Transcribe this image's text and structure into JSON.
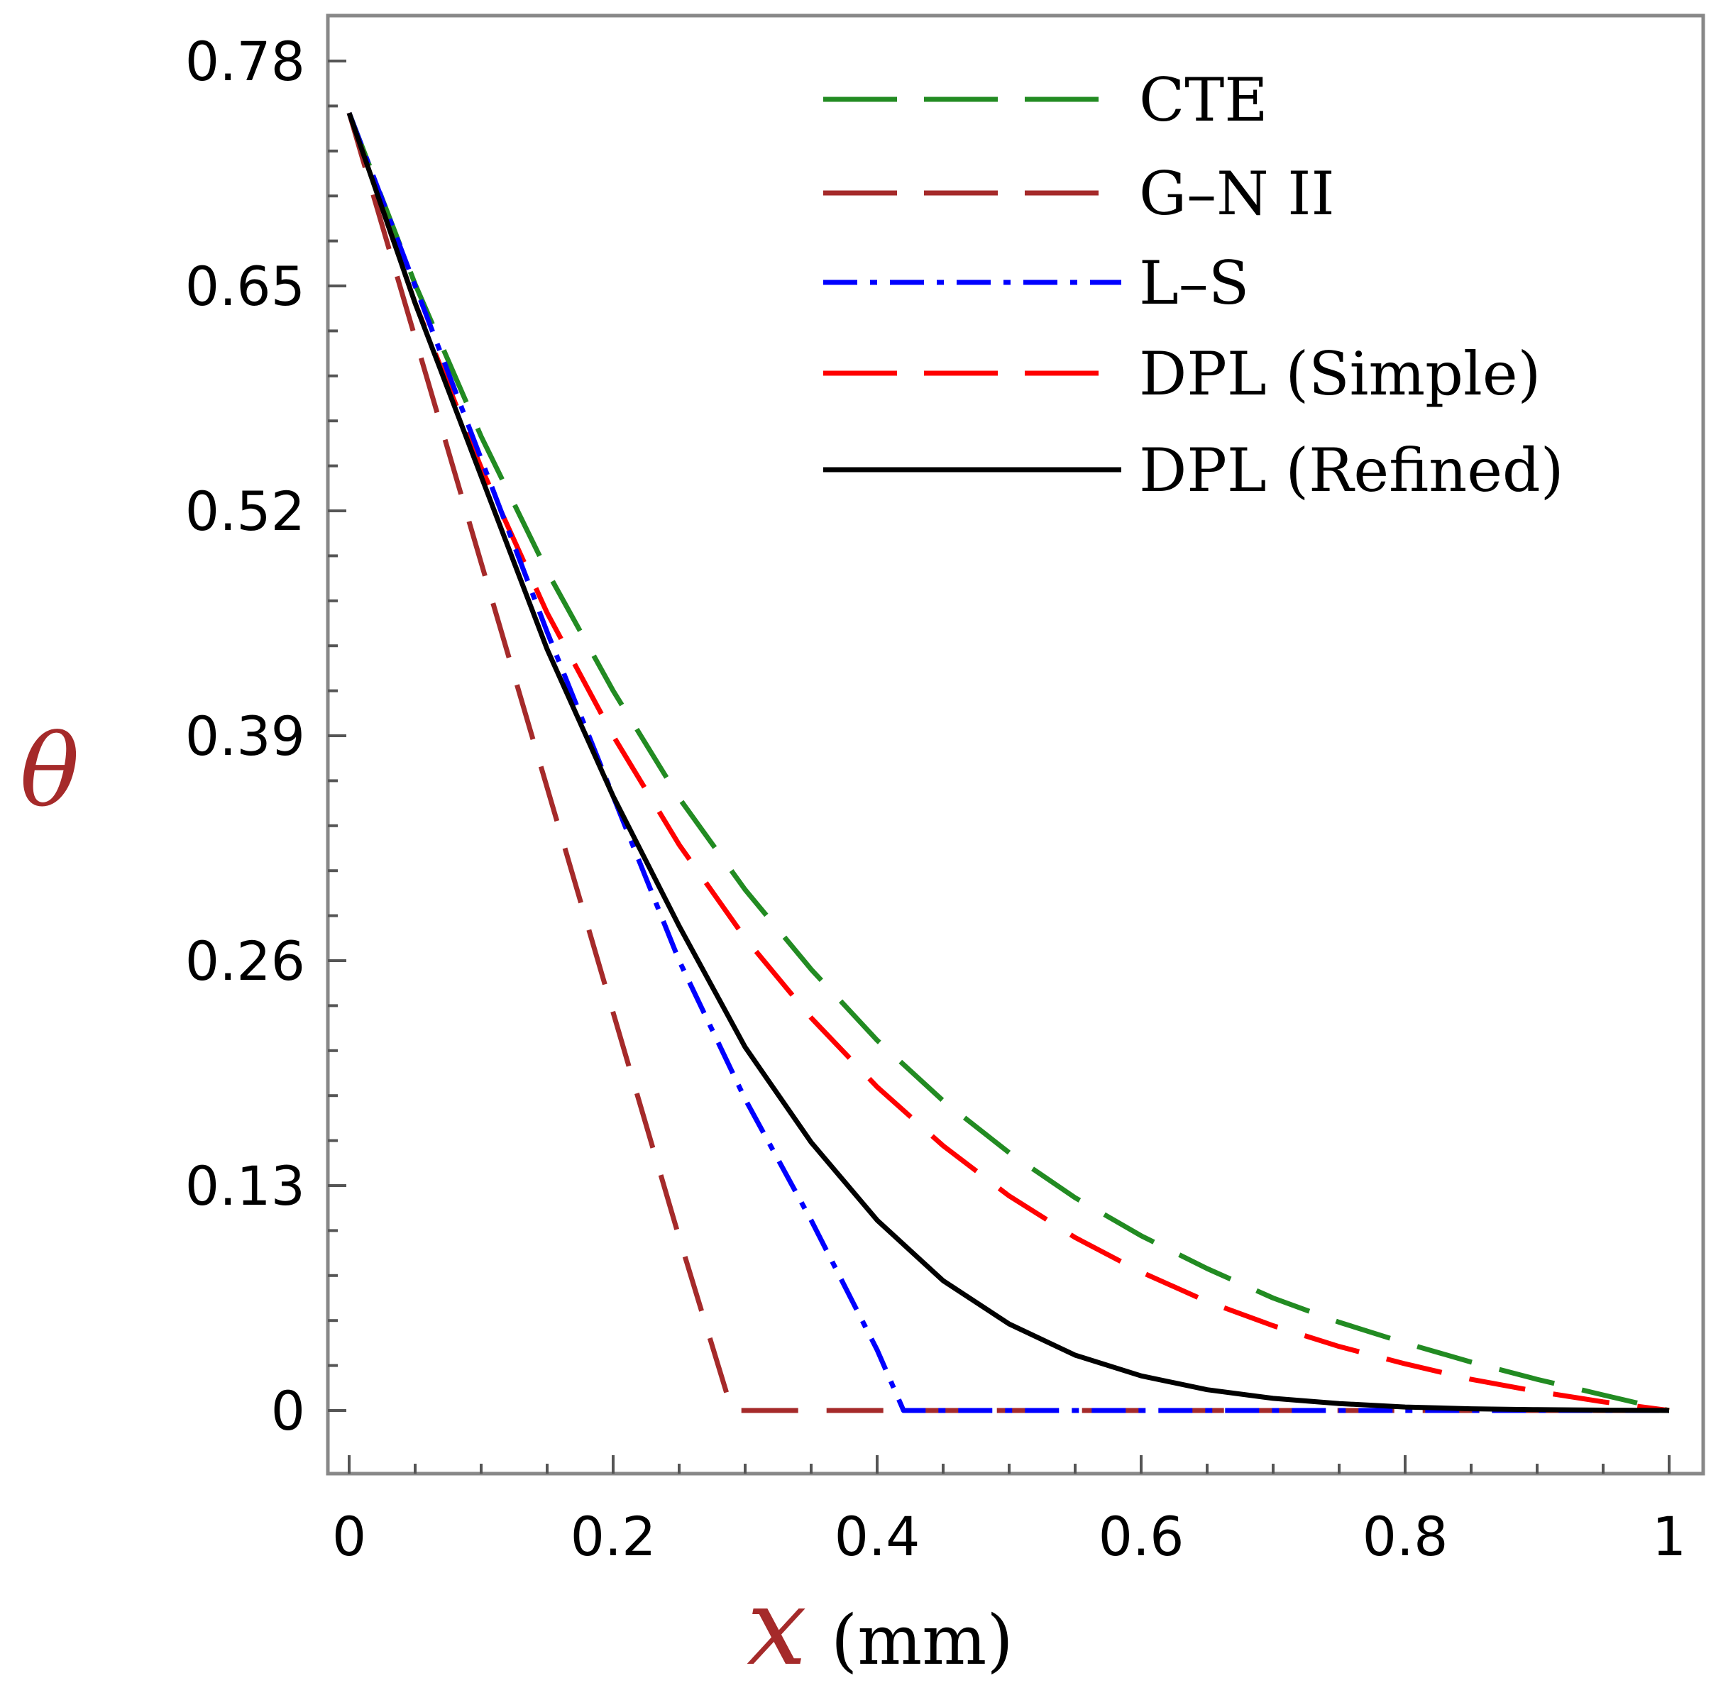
{
  "chart_data": {
    "type": "line",
    "title": "",
    "xlabel": "x",
    "xlabel_unit": "(mm)",
    "ylabel": "θ",
    "xlim": [
      0,
      1
    ],
    "ylim": [
      0,
      0.78
    ],
    "xticks": [
      0,
      0.2,
      0.4,
      0.6,
      0.8,
      1
    ],
    "xtick_labels": [
      "0",
      "0.2",
      "0.4",
      "0.6",
      "0.8",
      "1"
    ],
    "yticks": [
      0,
      0.13,
      0.26,
      0.39,
      0.52,
      0.65,
      0.78
    ],
    "ytick_labels": [
      "0",
      "0.13",
      "0.26",
      "0.39",
      "0.52",
      "0.65",
      "0.78"
    ],
    "grid": false,
    "legend_position": "top-right",
    "series": [
      {
        "name": "CTE",
        "color": "#228b22",
        "dash": "long-dash",
        "x": [
          0,
          0.05,
          0.1,
          0.15,
          0.2,
          0.25,
          0.3,
          0.35,
          0.4,
          0.45,
          0.5,
          0.55,
          0.6,
          0.65,
          0.7,
          0.75,
          0.8,
          0.85,
          0.9,
          0.95,
          1.0
        ],
        "y": [
          0.75,
          0.651,
          0.563,
          0.485,
          0.416,
          0.354,
          0.301,
          0.255,
          0.214,
          0.179,
          0.149,
          0.123,
          0.101,
          0.082,
          0.065,
          0.051,
          0.039,
          0.028,
          0.018,
          0.009,
          0.0
        ]
      },
      {
        "name": "G–N II",
        "color": "#a52a2a",
        "dash": "long-dash",
        "x": [
          0,
          0.05,
          0.1,
          0.15,
          0.2,
          0.25,
          0.29,
          0.35,
          0.4,
          0.5,
          0.6,
          0.7,
          0.8,
          0.9,
          1.0
        ],
        "y": [
          0.75,
          0.62,
          0.49,
          0.36,
          0.23,
          0.1,
          0.0,
          0.0,
          0.0,
          0.0,
          0.0,
          0.0,
          0.0,
          0.0,
          0.0
        ]
      },
      {
        "name": "L–S",
        "color": "#0000ff",
        "dash": "dash-dot",
        "x": [
          0,
          0.05,
          0.1,
          0.15,
          0.2,
          0.25,
          0.3,
          0.35,
          0.4,
          0.42,
          0.5,
          0.6,
          0.7,
          0.8,
          0.9,
          1.0
        ],
        "y": [
          0.75,
          0.65,
          0.55,
          0.45,
          0.355,
          0.26,
          0.18,
          0.11,
          0.035,
          0.0,
          0.0,
          0.0,
          0.0,
          0.0,
          0.0,
          0.0
        ]
      },
      {
        "name": "DPL (Simple)",
        "color": "#ff0000",
        "dash": "long-dash",
        "x": [
          0,
          0.05,
          0.1,
          0.15,
          0.2,
          0.25,
          0.3,
          0.35,
          0.4,
          0.45,
          0.5,
          0.55,
          0.6,
          0.65,
          0.7,
          0.75,
          0.8,
          0.85,
          0.9,
          0.95,
          1.0
        ],
        "y": [
          0.75,
          0.64,
          0.545,
          0.461,
          0.39,
          0.327,
          0.273,
          0.227,
          0.187,
          0.153,
          0.124,
          0.1,
          0.08,
          0.063,
          0.049,
          0.037,
          0.027,
          0.018,
          0.011,
          0.005,
          0.0
        ]
      },
      {
        "name": "DPL (Refined)",
        "color": "#000000",
        "dash": "solid",
        "x": [
          0,
          0.05,
          0.1,
          0.15,
          0.2,
          0.25,
          0.3,
          0.35,
          0.4,
          0.45,
          0.5,
          0.55,
          0.6,
          0.65,
          0.7,
          0.75,
          0.8,
          0.85,
          0.9,
          0.95,
          1.0
        ],
        "y": [
          0.75,
          0.64,
          0.54,
          0.44,
          0.355,
          0.28,
          0.21,
          0.155,
          0.11,
          0.075,
          0.05,
          0.032,
          0.02,
          0.012,
          0.007,
          0.004,
          0.002,
          0.001,
          0.0005,
          0.0002,
          0.0
        ]
      }
    ]
  }
}
